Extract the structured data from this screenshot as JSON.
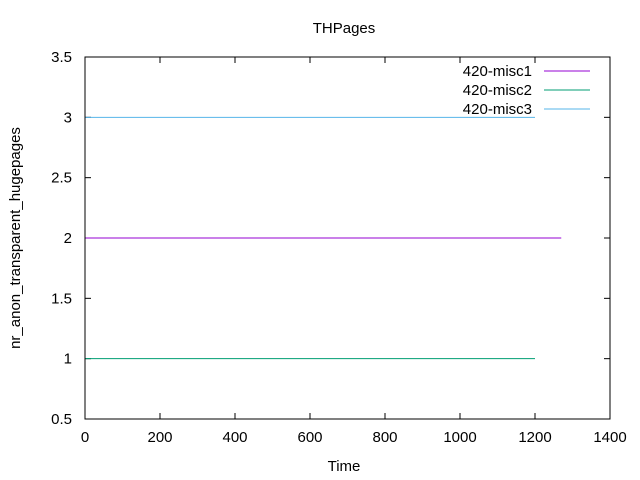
{
  "chart_data": {
    "type": "line",
    "title": "THPages",
    "xlabel": "Time",
    "ylabel": "nr_anon_transparent_hugepages",
    "xlim": [
      0,
      1400
    ],
    "ylim": [
      0.5,
      3.5
    ],
    "xticks": [
      0,
      200,
      400,
      600,
      800,
      1000,
      1200,
      1400
    ],
    "yticks": [
      0.5,
      1,
      1.5,
      2,
      2.5,
      3,
      3.5
    ],
    "xtick_labels": [
      "0",
      "200",
      "400",
      "600",
      "800",
      "1000",
      "1200",
      "1400"
    ],
    "ytick_labels": [
      "0.5",
      "1",
      "1.5",
      "2",
      "2.5",
      "3",
      "3.5"
    ],
    "grid": false,
    "legend_position": "top-right",
    "series": [
      {
        "name": "420-misc1",
        "color": "#9400d3",
        "x": [
          0,
          1270
        ],
        "y": [
          2,
          2
        ]
      },
      {
        "name": "420-misc2",
        "color": "#009e73",
        "x": [
          0,
          1200
        ],
        "y": [
          1,
          1
        ]
      },
      {
        "name": "420-misc3",
        "color": "#56b4e9",
        "x": [
          0,
          1200
        ],
        "y": [
          3,
          3
        ]
      }
    ]
  }
}
